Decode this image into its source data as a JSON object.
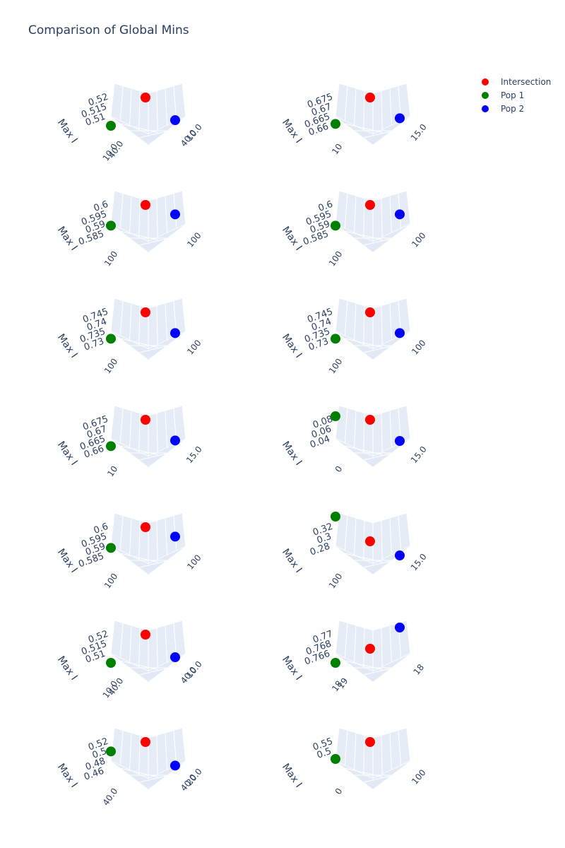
{
  "title": "Comparison of Global Mins",
  "legend": [
    {
      "name": "Intersection",
      "color": "#ff0000"
    },
    {
      "name": "Pop 1",
      "color": "#008000"
    },
    {
      "name": "Pop 2",
      "color": "#0000ff"
    }
  ],
  "chart_data": [
    {
      "type": "scatter",
      "zlabel": "Max I",
      "zticks": [
        "0.52",
        "0.515",
        "0.51"
      ],
      "xticks": [
        "10.0",
        "40.0"
      ],
      "yticks": [
        "10.0",
        "40.0"
      ],
      "points": {
        "intersection": [
          0.52
        ],
        "pop1": [
          0.51
        ],
        "pop2": [
          0.512
        ]
      }
    },
    {
      "type": "scatter",
      "zlabel": "Max I",
      "zticks": [
        "0.675",
        "0.67",
        "0.665",
        "0.66"
      ],
      "xticks": [
        "10"
      ],
      "yticks": [
        "15.0"
      ],
      "points": {
        "intersection": [
          0.675
        ],
        "pop1": [
          0.661
        ],
        "pop2": [
          0.664
        ]
      }
    },
    {
      "type": "scatter",
      "zlabel": "Max I",
      "zticks": [
        "0.6",
        "0.595",
        "0.59",
        "0.585"
      ],
      "xticks": [
        "100"
      ],
      "yticks": [
        "100"
      ],
      "points": {
        "intersection": [
          0.6
        ],
        "pop1": [
          0.589
        ],
        "pop2": [
          0.595
        ]
      }
    },
    {
      "type": "scatter",
      "zlabel": "Max I",
      "zticks": [
        "0.6",
        "0.595",
        "0.59",
        "0.585"
      ],
      "xticks": [
        "100"
      ],
      "yticks": [
        "100"
      ],
      "points": {
        "intersection": [
          0.6
        ],
        "pop1": [
          0.589
        ],
        "pop2": [
          0.595
        ]
      }
    },
    {
      "type": "scatter",
      "zlabel": "Max I",
      "zticks": [
        "0.745",
        "0.74",
        "0.735",
        "0.73"
      ],
      "xticks": [
        "100"
      ],
      "yticks": [
        "100"
      ],
      "points": {
        "intersection": [
          0.745
        ],
        "pop1": [
          0.731
        ],
        "pop2": [
          0.734
        ]
      }
    },
    {
      "type": "scatter",
      "zlabel": "Max I",
      "zticks": [
        "0.745",
        "0.74",
        "0.735",
        "0.73"
      ],
      "xticks": [
        "100"
      ],
      "yticks": [
        "100"
      ],
      "points": {
        "intersection": [
          0.745
        ],
        "pop1": [
          0.731
        ],
        "pop2": [
          0.734
        ]
      }
    },
    {
      "type": "scatter",
      "zlabel": "Max I",
      "zticks": [
        "0.675",
        "0.67",
        "0.665",
        "0.66"
      ],
      "xticks": [
        "10"
      ],
      "yticks": [
        "15.0"
      ],
      "points": {
        "intersection": [
          0.675
        ],
        "pop1": [
          0.661
        ],
        "pop2": [
          0.664
        ]
      }
    },
    {
      "type": "scatter",
      "zlabel": "Max I",
      "zticks": [
        "0.08",
        "0.06",
        "0.04"
      ],
      "xticks": [
        "0"
      ],
      "yticks": [
        "15.0"
      ],
      "points": {
        "intersection": [
          0.08
        ],
        "pop1": [
          0.085
        ],
        "pop2": [
          0.05
        ]
      }
    },
    {
      "type": "scatter",
      "zlabel": "Max I",
      "zticks": [
        "0.6",
        "0.595",
        "0.59",
        "0.585"
      ],
      "xticks": [
        "100"
      ],
      "yticks": [
        "100"
      ],
      "points": {
        "intersection": [
          0.6
        ],
        "pop1": [
          0.589
        ],
        "pop2": [
          0.595
        ]
      }
    },
    {
      "type": "scatter",
      "zlabel": "Max I",
      "zticks": [
        "0.32",
        "0.3",
        "0.28"
      ],
      "xticks": [
        "100"
      ],
      "yticks": [
        "15.0"
      ],
      "points": {
        "intersection": [
          0.3
        ],
        "pop1": [
          0.335
        ],
        "pop2": [
          0.28
        ]
      }
    },
    {
      "type": "scatter",
      "zlabel": "Max I",
      "zticks": [
        "0.52",
        "0.515",
        "0.51"
      ],
      "xticks": [
        "10.0",
        "40.0"
      ],
      "yticks": [
        "10.0",
        "40.0"
      ],
      "points": {
        "intersection": [
          0.52
        ],
        "pop1": [
          0.51
        ],
        "pop2": [
          0.512
        ]
      }
    },
    {
      "type": "scatter",
      "zlabel": "Max I",
      "zticks": [
        "0.77",
        "0.768",
        "0.766"
      ],
      "xticks": [
        "18",
        "19"
      ],
      "yticks": [
        "18"
      ],
      "points": {
        "intersection": [
          0.768
        ],
        "pop1": [
          0.766
        ],
        "pop2": [
          0.771
        ]
      }
    },
    {
      "type": "scatter",
      "zlabel": "Max I",
      "zticks": [
        "0.52",
        "0.5",
        "0.48",
        "0.46"
      ],
      "xticks": [
        "40.0"
      ],
      "yticks": [
        "20.0",
        "40.0"
      ],
      "points": {
        "intersection": [
          0.52
        ],
        "pop1": [
          0.5
        ],
        "pop2": [
          0.47
        ]
      }
    },
    {
      "type": "scatter",
      "zlabel": "Max I",
      "zticks": [
        "0.55",
        "0.5"
      ],
      "xticks": [
        "0"
      ],
      "yticks": [
        "100"
      ],
      "points": {
        "intersection": [
          0.55
        ],
        "pop1": [
          0.52
        ],
        "pop2": []
      }
    }
  ]
}
